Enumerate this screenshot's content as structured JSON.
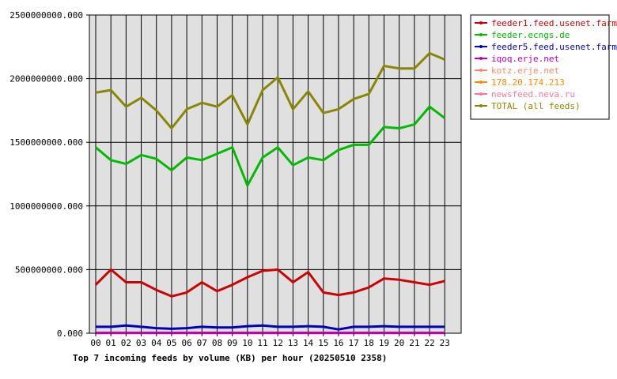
{
  "caption": "Top 7 incoming feeds by volume (KB) per hour (20250510 2358)",
  "colors": {
    "plot_background": "#e0e0e0",
    "grid": "#000000"
  },
  "chart_data": {
    "type": "line",
    "title": "Top 7 incoming feeds by volume (KB) per hour (20250510 2358)",
    "xlabel": "",
    "ylabel": "",
    "categories": [
      "00",
      "01",
      "02",
      "03",
      "04",
      "05",
      "06",
      "07",
      "08",
      "09",
      "10",
      "11",
      "12",
      "13",
      "14",
      "15",
      "16",
      "17",
      "18",
      "19",
      "20",
      "21",
      "22",
      "23"
    ],
    "ylim": [
      0,
      2500000000
    ],
    "yticks": [
      "0.000",
      "500000000.000",
      "1000000000.000",
      "1500000000.000",
      "2000000000.000",
      "2500000000.000"
    ],
    "grid": true,
    "legend_position": "right",
    "series": [
      {
        "name": "feeder1.feed.usenet.farm",
        "color": "#cc0000",
        "values": [
          380000000,
          500000000,
          400000000,
          400000000,
          340000000,
          290000000,
          320000000,
          400000000,
          330000000,
          380000000,
          440000000,
          490000000,
          500000000,
          400000000,
          480000000,
          320000000,
          300000000,
          320000000,
          360000000,
          430000000,
          420000000,
          400000000,
          380000000,
          410000000
        ]
      },
      {
        "name": "feeder.ecngs.de",
        "color": "#00bb00",
        "values": [
          1460000000,
          1360000000,
          1330000000,
          1400000000,
          1370000000,
          1280000000,
          1380000000,
          1360000000,
          1410000000,
          1460000000,
          1160000000,
          1380000000,
          1460000000,
          1320000000,
          1380000000,
          1360000000,
          1440000000,
          1480000000,
          1480000000,
          1620000000,
          1610000000,
          1640000000,
          1780000000,
          1690000000
        ]
      },
      {
        "name": "feeder5.feed.usenet.farm",
        "color": "#0000bb",
        "values": [
          50000000,
          50000000,
          60000000,
          50000000,
          40000000,
          35000000,
          40000000,
          50000000,
          45000000,
          45000000,
          55000000,
          60000000,
          50000000,
          50000000,
          55000000,
          50000000,
          30000000,
          50000000,
          50000000,
          55000000,
          50000000,
          50000000,
          50000000,
          50000000
        ]
      },
      {
        "name": "iqoq.erje.net",
        "color": "#bb00bb",
        "values": [
          3000000,
          3000000,
          3000000,
          3000000,
          3000000,
          3000000,
          3000000,
          3000000,
          3000000,
          3000000,
          3000000,
          3000000,
          3000000,
          3000000,
          3000000,
          3000000,
          3000000,
          3000000,
          3000000,
          3000000,
          3000000,
          3000000,
          3000000,
          3000000
        ]
      },
      {
        "name": "kotz.erje.net",
        "color": "#ff8866",
        "values": [
          2000000,
          2000000,
          2000000,
          2000000,
          2000000,
          2000000,
          2000000,
          2000000,
          2000000,
          2000000,
          2000000,
          2000000,
          2000000,
          2000000,
          2000000,
          2000000,
          2000000,
          2000000,
          2000000,
          2000000,
          2000000,
          2000000,
          2000000,
          2000000
        ]
      },
      {
        "name": "178.20.174.213",
        "color": "#ff8800",
        "values": [
          1000000,
          1000000,
          1000000,
          1000000,
          1000000,
          1000000,
          1000000,
          1000000,
          1000000,
          1000000,
          1000000,
          1000000,
          1000000,
          1000000,
          1000000,
          1000000,
          1000000,
          1000000,
          1000000,
          1000000,
          1000000,
          1000000,
          1000000,
          1000000
        ]
      },
      {
        "name": "newsfeed.neva.ru",
        "color": "#ff7799",
        "values": [
          1000000,
          1000000,
          1000000,
          1000000,
          1000000,
          1000000,
          1000000,
          1000000,
          1000000,
          1000000,
          1000000,
          1000000,
          1000000,
          1000000,
          1000000,
          1000000,
          1000000,
          1000000,
          1000000,
          1000000,
          1000000,
          1000000,
          1000000,
          1000000
        ]
      },
      {
        "name": "TOTAL (all feeds)",
        "color": "#888800",
        "values": [
          1890000000,
          1910000000,
          1780000000,
          1850000000,
          1750000000,
          1610000000,
          1760000000,
          1810000000,
          1780000000,
          1870000000,
          1640000000,
          1910000000,
          2010000000,
          1760000000,
          1900000000,
          1730000000,
          1760000000,
          1840000000,
          1880000000,
          2100000000,
          2080000000,
          2080000000,
          2200000000,
          2150000000
        ]
      }
    ]
  }
}
